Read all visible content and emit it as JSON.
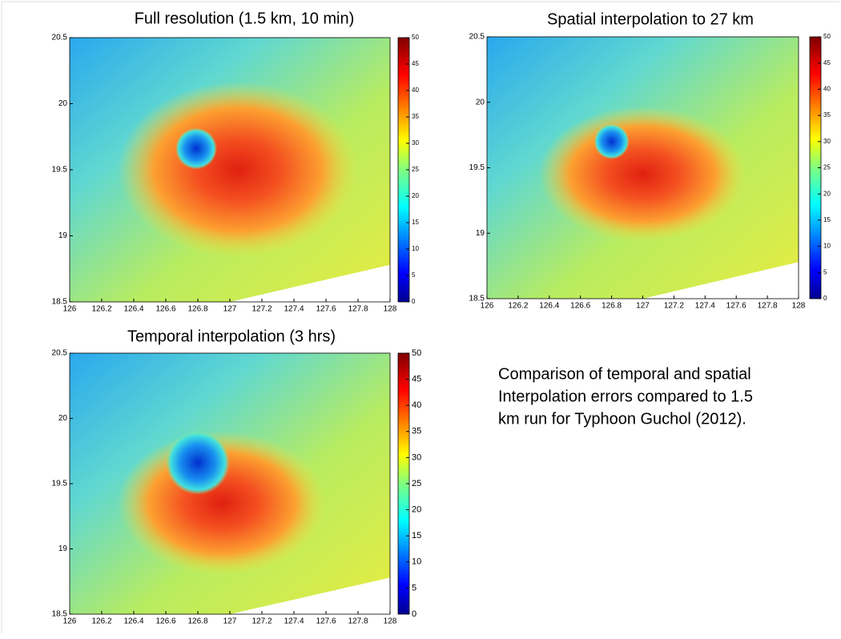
{
  "chart_data": [
    {
      "type": "heatmap",
      "title": "Full resolution (1.5 km, 10 min)",
      "xlim": [
        126,
        128
      ],
      "xticks": [
        126,
        126.2,
        126.4,
        126.6,
        126.8,
        127,
        127.2,
        127.4,
        127.6,
        127.8,
        128
      ],
      "ylim": [
        18.5,
        20.5
      ],
      "yticks": [
        18.5,
        19,
        19.5,
        20,
        20.5
      ],
      "colorbar": {
        "lim": [
          0,
          50
        ],
        "ticks": [
          0,
          5,
          10,
          15,
          20,
          25,
          30,
          35,
          40,
          45,
          50
        ]
      }
    },
    {
      "type": "heatmap",
      "title": "Spatial interpolation to 27 km",
      "xlim": [
        126,
        128
      ],
      "xticks": [
        126,
        126.2,
        126.4,
        126.6,
        126.8,
        127,
        127.2,
        127.4,
        127.6,
        127.8,
        128
      ],
      "ylim": [
        18.5,
        20.5
      ],
      "yticks": [
        18.5,
        19,
        19.5,
        20,
        20.5
      ],
      "colorbar": {
        "lim": [
          0,
          50
        ],
        "ticks": [
          0,
          5,
          10,
          15,
          20,
          25,
          30,
          35,
          40,
          45,
          50
        ]
      }
    },
    {
      "type": "heatmap",
      "title": "Temporal interpolation (3 hrs)",
      "xlim": [
        126,
        128
      ],
      "xticks": [
        126,
        126.2,
        126.4,
        126.6,
        126.8,
        127,
        127.2,
        127.4,
        127.6,
        127.8,
        128
      ],
      "ylim": [
        18.5,
        20.5
      ],
      "yticks": [
        18.5,
        19,
        19.5,
        20,
        20.5
      ],
      "colorbar": {
        "lim": [
          0,
          50
        ],
        "ticks": [
          0,
          5,
          10,
          15,
          20,
          25,
          30,
          35,
          40,
          45,
          50
        ]
      }
    }
  ],
  "caption": {
    "lines": [
      "Comparison of temporal and spatial",
      "Interpolation errors compared to 1.5",
      "km run for Typhoon Guchol (2012)."
    ]
  }
}
